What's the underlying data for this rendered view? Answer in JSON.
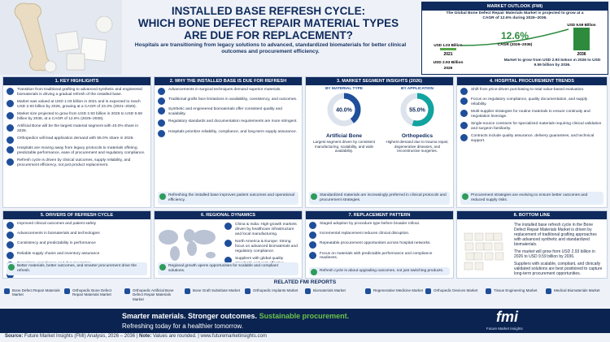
{
  "header": {
    "title_lines": [
      "INSTALLED BASE REFRESH CYCLE:",
      "WHICH BONE DEFECT REPAIR MATERIAL TYPES",
      "ARE DUE FOR REPLACEMENT?"
    ],
    "subtitle": "Hospitals are transitioning from legacy solutions to advanced, standardized biomaterials for better clinical outcomes and procurement efficiency."
  },
  "outlook": {
    "title": "MARKET OUTLOOK (FMI)",
    "summary": "The Global Bone Defect Repair Materials Market is projected to grow at a CAGR of 12.6% during 2026–2036.",
    "cagr": "12.6%",
    "cagr_label": "CAGR (2026–2036)",
    "bars": [
      {
        "value": 1.03,
        "label": "USD 1.03 Billion",
        "year": "2021"
      },
      {
        "value": 9.59,
        "label": "USD 9.59 Billion",
        "year": "2036"
      }
    ],
    "mid_label": "USD 2.93 Billion",
    "mid_year": "2026",
    "note": "Market to grow from USD 2.93 billion in 2026 to USD 9.59 billion by 2036."
  },
  "panels": [
    {
      "heading": "1. KEY HIGHLIGHTS",
      "items": [
        "Transition from traditional grafting to advanced synthetic and engineered biomaterials is driving a gradual refresh of the installed base.",
        "Market was valued at USD 1.03 billion in 2021 and is expected to reach USD 2.93 billion by 2026, growing at a CAGR of 23.3% (2021–2026).",
        "Market size projected to grow from USD 2.93 billion in 2026 to USD 9.59 billion by 2036, at a CAGR of 12.6% (2026–2036).",
        "Artificial Bone will be the largest material segment with 40.0% share in 2026.",
        "Orthopedics will lead application demand with 55.0% share in 2026.",
        "Hospitals are moving away from legacy protocols to materials offering predictable performance, ease of procurement and regulatory compliance.",
        "Refresh cycle is driven by clinical outcomes, supply reliability, and procurement efficiency, not just product replacement."
      ]
    },
    {
      "heading": "2. WHY THE INSTALLED BASE IS DUE FOR REFRESH",
      "items": [
        "Advancements in surgical techniques demand superior materials.",
        "Traditional grafts face limitations in availability, consistency, and outcomes.",
        "Synthetic and engineered biomaterials offer consistent quality and scalability.",
        "Regulatory standards and documentation requirements are more stringent.",
        "Hospitals prioritize reliability, compliance, and long-term supply assurance."
      ],
      "footer": "Refreshing the installed base improves patient outcomes and operational efficiency."
    },
    {
      "heading": "3. MARKET SEGMENT INSIGHTS (2026)",
      "columns": [
        {
          "title": "BY MATERIAL TYPE",
          "share": {
            "value": 40,
            "label": "40.0%"
          },
          "name": "Artificial Bone",
          "text": "Largest segment driven by consistent manufacturing, scalability, and wide availability."
        },
        {
          "title": "BY APPLICATION",
          "share": {
            "value": 55,
            "label": "55.0%"
          },
          "name": "Orthopedics",
          "text": "Highest demand due to trauma repair, degenerative diseases, and reconstructive surgeries."
        }
      ],
      "footer": "Standardized materials are increasingly preferred in clinical protocols and procurement strategies."
    },
    {
      "heading": "4. HOSPITAL PROCUREMENT TRENDS",
      "items": [
        "Shift from price-driven purchasing to total value-based evaluation.",
        "Focus on regulatory compliance, quality documentation, and supply reliability.",
        "Multi-supplier strategies for routine materials to ensure continuity and negotiation leverage.",
        "Single-source contracts for specialized materials requiring clinical validation and surgeon familiarity.",
        "Contracts include quality assurance, delivery guarantees, and technical support."
      ],
      "footer": "Procurement strategies are evolving to ensure better outcomes and reduced supply risks."
    },
    {
      "heading": "5. DRIVERS OF REFRESH CYCLE",
      "items": [
        "Improved clinical outcomes and patient safety",
        "Advancements in biomaterials and technologies",
        "Consistency and predictability in performance",
        "Reliable supply chains and inventory assurance",
        "Regulatory compliance and documentation",
        "Operational efficiency and cost optimization"
      ],
      "footer": "Better materials, better outcomes, and smarter procurement drive the refresh."
    },
    {
      "heading": "6. REGIONAL DYNAMICS",
      "items": [
        "China & India: High-growth markets driven by healthcare infrastructure and local manufacturing.",
        "North America & Europe: Strong focus on advanced biomaterials and regulatory compliance.",
        "Suppliers with global quality standards and cost-effective solutions gain competitive edge."
      ],
      "footer": "Regional growth opens opportunities for scalable and compliant solutions."
    },
    {
      "heading": "7. REPLACEMENT PATTERN",
      "items": [
        "Staged adoption by procedure type before broader rollout.",
        "Incremental replacement reduces clinical disruption.",
        "Repeatable procurement opportunities across hospital networks.",
        "Focus on materials with predictable performance and compliance readiness."
      ],
      "footer": "Refresh cycle is about upgrading outcomes, not just switching products."
    },
    {
      "heading": "8. BOTTOM LINE",
      "items": [
        "The installed base refresh cycle in the Bone Defect Repair Materials Market is driven by replacement of traditional grafting approaches with advanced synthetic and standardized biomaterials.",
        "The market will grow from USD 2.93 billion in 2026 to USD 9.59 billion by 2036.",
        "Suppliers with scalable, compliant, and clinically validated solutions are best positioned to capture long-term procurement opportunities."
      ]
    }
  ],
  "related": {
    "title": "RELATED FMI REPORTS",
    "items": [
      "Bone Defect Repair Materials Market",
      "Orthopedic Bone Defect Repair Materials Market",
      "Orthopedic Artificial Bone Defect Repair Materials Market",
      "Bone Graft Substitute Market",
      "Orthopedic Implants Market",
      "Biomaterials Market",
      "Regenerative Medicine Market",
      "Orthopedic Devices Market",
      "Tissue Engineering Market",
      "Medical Biomaterials Market"
    ]
  },
  "footer": {
    "tagline_a": "Smarter materials. Stronger outcomes.",
    "tagline_b": "Sustainable procurement.",
    "tagline_c": "Refreshing today for a healthier tomorrow.",
    "logo": "fmi",
    "logo_text": "Future Market Insights"
  },
  "source": {
    "label": "Source:",
    "text": "Future Market Insights (FMI) Analysis, 2026 – 2036 |",
    "note_label": "Note:",
    "note": "Values are rounded. | www.futuremarketinsights.com"
  }
}
